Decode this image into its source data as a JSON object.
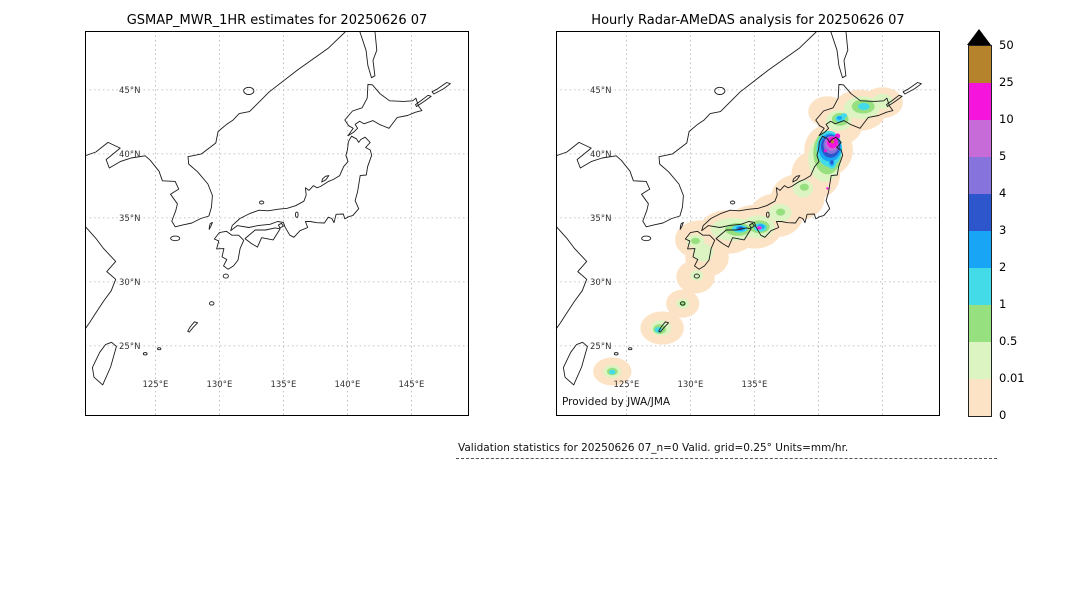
{
  "figure": {
    "background_color": "#ffffff",
    "caption": "Validation statistics for 20250626 07_n=0 Valid. grid=0.25° Units=mm/hr."
  },
  "colorbar": {
    "tick_labels_top_to_bottom": [
      "50",
      "25",
      "10",
      "5",
      "4",
      "3",
      "2",
      "1",
      "0.5",
      "0.01",
      "0"
    ],
    "band_colors_top_to_bottom": [
      "#b5832b",
      "#f414dc",
      "#c76bd8",
      "#8673dc",
      "#2d55cc",
      "#18a5f5",
      "#43dbe8",
      "#97e080",
      "#dcf3c2",
      "#fce3c5"
    ],
    "overflow_triangle_color": "#000000",
    "units": "mm/hr"
  },
  "chart_data": [
    {
      "type": "map",
      "title": "GSMAP_MWR_1HR estimates for 20250626 07",
      "extent": {
        "lon_min": 119.5,
        "lon_max": 149.5,
        "lat_min": 19.5,
        "lat_max": 49.6
      },
      "grid": true,
      "lat_gridlines": [
        25,
        30,
        35,
        40,
        45
      ],
      "lon_gridlines": [
        125,
        130,
        135,
        140,
        145
      ],
      "lat_ticks": [
        {
          "value": 45,
          "label": "45°N"
        },
        {
          "value": 40,
          "label": "40°N"
        },
        {
          "value": 35,
          "label": "35°N"
        },
        {
          "value": 30,
          "label": "30°N"
        },
        {
          "value": 25,
          "label": "25°N"
        }
      ],
      "lon_ticks": [
        {
          "value": 125,
          "label": "125°E"
        },
        {
          "value": 130,
          "label": "130°E"
        },
        {
          "value": 135,
          "label": "135°E"
        },
        {
          "value": 140,
          "label": "140°E"
        },
        {
          "value": 145,
          "label": "145°E"
        }
      ],
      "precip_blobs": []
    },
    {
      "type": "map",
      "title": "Hourly Radar-AMeDAS analysis for 20250626 07",
      "credit": "Provided by JWA/JMA",
      "units": "mm/hr",
      "extent": {
        "lon_min": 119.5,
        "lon_max": 149.5,
        "lat_min": 19.5,
        "lat_max": 49.6
      },
      "grid": true,
      "lat_gridlines": [
        25,
        30,
        35,
        40,
        45
      ],
      "lon_gridlines": [
        125,
        130,
        135,
        140,
        145
      ],
      "lat_ticks": [
        {
          "value": 45,
          "label": "45°N"
        },
        {
          "value": 40,
          "label": "40°N"
        },
        {
          "value": 35,
          "label": "35°N"
        },
        {
          "value": 30,
          "label": "30°N"
        },
        {
          "value": 25,
          "label": "25°N"
        }
      ],
      "lon_ticks": [
        {
          "value": 125,
          "label": "125°E"
        },
        {
          "value": 130,
          "label": "130°E"
        },
        {
          "value": 135,
          "label": "135°E"
        }
      ],
      "blob_format": [
        "lon_deg",
        "lat_deg",
        "rx_deg",
        "ry_deg",
        "intensity_band_index_from_bottom"
      ],
      "precip_blobs": [
        [
          123.9,
          23.0,
          1.5,
          1.1,
          0
        ],
        [
          127.8,
          26.4,
          1.7,
          1.3,
          0
        ],
        [
          129.4,
          28.3,
          1.3,
          1.1,
          0
        ],
        [
          130.4,
          30.4,
          1.5,
          1.3,
          0
        ],
        [
          131.3,
          31.9,
          1.7,
          1.5,
          0
        ],
        [
          130.7,
          33.3,
          1.9,
          1.5,
          0
        ],
        [
          132.9,
          33.9,
          2.3,
          1.7,
          0
        ],
        [
          135.0,
          34.3,
          2.2,
          1.7,
          0
        ],
        [
          136.7,
          35.2,
          2.1,
          1.7,
          0
        ],
        [
          138.4,
          36.6,
          2.1,
          1.8,
          0
        ],
        [
          139.8,
          38.4,
          1.9,
          1.9,
          0
        ],
        [
          140.8,
          40.3,
          1.9,
          2.0,
          0
        ],
        [
          141.7,
          42.2,
          1.7,
          1.5,
          0
        ],
        [
          143.2,
          43.4,
          2.1,
          1.6,
          0
        ],
        [
          145.0,
          44.0,
          1.6,
          1.2,
          0
        ],
        [
          140.7,
          43.3,
          1.5,
          1.2,
          0
        ],
        [
          133.3,
          34.1,
          1.7,
          0.9,
          1
        ],
        [
          135.3,
          34.3,
          1.3,
          0.9,
          1
        ],
        [
          131.0,
          32.3,
          0.8,
          0.7,
          1
        ],
        [
          130.4,
          33.2,
          0.7,
          0.5,
          1
        ],
        [
          137.0,
          35.4,
          0.9,
          0.7,
          1
        ],
        [
          138.8,
          37.3,
          0.8,
          0.7,
          1
        ],
        [
          140.5,
          39.6,
          1.3,
          1.8,
          1
        ],
        [
          141.6,
          42.6,
          1.0,
          0.8,
          1
        ],
        [
          143.4,
          43.6,
          1.4,
          0.9,
          1
        ],
        [
          145.0,
          44.1,
          0.8,
          0.6,
          1
        ],
        [
          127.7,
          26.4,
          0.8,
          0.6,
          1
        ],
        [
          129.4,
          28.3,
          0.5,
          0.4,
          1
        ],
        [
          123.9,
          23.0,
          0.7,
          0.5,
          1
        ],
        [
          130.5,
          30.5,
          0.5,
          0.4,
          1
        ],
        [
          133.7,
          34.1,
          1.0,
          0.5,
          2
        ],
        [
          135.4,
          34.3,
          0.8,
          0.5,
          2
        ],
        [
          137.05,
          35.45,
          0.35,
          0.28,
          2
        ],
        [
          138.9,
          37.4,
          0.35,
          0.28,
          2
        ],
        [
          140.7,
          40.1,
          1.1,
          1.7,
          2
        ],
        [
          141.05,
          39.2,
          0.5,
          0.6,
          2
        ],
        [
          141.7,
          42.7,
          0.65,
          0.5,
          2
        ],
        [
          143.5,
          43.7,
          0.9,
          0.55,
          2
        ],
        [
          127.6,
          26.3,
          0.5,
          0.38,
          2
        ],
        [
          123.9,
          23.0,
          0.42,
          0.3,
          2
        ],
        [
          130.4,
          33.2,
          0.35,
          0.25,
          2
        ],
        [
          129.4,
          28.3,
          0.25,
          0.2,
          2
        ],
        [
          133.85,
          34.15,
          0.6,
          0.3,
          3
        ],
        [
          135.45,
          34.25,
          0.5,
          0.33,
          3
        ],
        [
          140.85,
          40.4,
          1.0,
          1.4,
          3
        ],
        [
          141.05,
          39.25,
          0.33,
          0.42,
          3
        ],
        [
          141.7,
          42.75,
          0.38,
          0.28,
          3
        ],
        [
          143.55,
          43.7,
          0.45,
          0.28,
          3
        ],
        [
          127.5,
          26.25,
          0.3,
          0.22,
          3
        ],
        [
          123.9,
          22.95,
          0.25,
          0.18,
          3
        ],
        [
          142.0,
          43.0,
          0.25,
          0.18,
          3
        ],
        [
          133.9,
          34.17,
          0.36,
          0.2,
          4
        ],
        [
          135.5,
          34.3,
          0.3,
          0.2,
          4
        ],
        [
          140.9,
          40.5,
          0.9,
          1.1,
          4
        ],
        [
          141.05,
          39.3,
          0.2,
          0.26,
          4
        ],
        [
          141.65,
          42.8,
          0.2,
          0.15,
          4
        ],
        [
          133.92,
          34.18,
          0.2,
          0.12,
          5
        ],
        [
          140.95,
          40.6,
          0.75,
          0.9,
          5
        ],
        [
          141.05,
          39.35,
          0.12,
          0.15,
          5
        ],
        [
          141.0,
          40.7,
          0.6,
          0.7,
          6
        ],
        [
          141.35,
          41.25,
          0.2,
          0.2,
          6
        ],
        [
          141.05,
          40.8,
          0.5,
          0.55,
          7
        ],
        [
          135.38,
          34.22,
          0.22,
          0.15,
          7
        ],
        [
          141.1,
          40.9,
          0.42,
          0.45,
          8
        ],
        [
          141.5,
          41.4,
          0.2,
          0.2,
          8
        ],
        [
          140.55,
          40.25,
          0.12,
          0.12,
          8
        ],
        [
          135.38,
          34.22,
          0.13,
          0.1,
          8
        ],
        [
          140.7,
          37.3,
          0.09,
          0.09,
          8
        ],
        [
          141.1,
          40.95,
          0.12,
          0.14,
          9
        ]
      ]
    }
  ]
}
